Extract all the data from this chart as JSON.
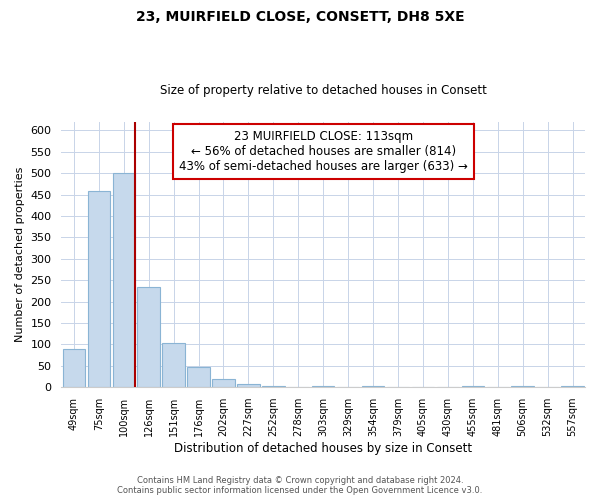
{
  "title": "23, MUIRFIELD CLOSE, CONSETT, DH8 5XE",
  "subtitle": "Size of property relative to detached houses in Consett",
  "xlabel": "Distribution of detached houses by size in Consett",
  "ylabel": "Number of detached properties",
  "bar_labels": [
    "49sqm",
    "75sqm",
    "100sqm",
    "126sqm",
    "151sqm",
    "176sqm",
    "202sqm",
    "227sqm",
    "252sqm",
    "278sqm",
    "303sqm",
    "329sqm",
    "354sqm",
    "379sqm",
    "405sqm",
    "430sqm",
    "455sqm",
    "481sqm",
    "506sqm",
    "532sqm",
    "557sqm"
  ],
  "bar_values": [
    90,
    458,
    500,
    235,
    103,
    47,
    19,
    8,
    2,
    0,
    3,
    0,
    3,
    0,
    0,
    0,
    2,
    0,
    2,
    0,
    2
  ],
  "bar_color": "#c6d9ec",
  "bar_edge_color": "#8ab4d4",
  "vline_color": "#aa0000",
  "annotation_title": "23 MUIRFIELD CLOSE: 113sqm",
  "annotation_line1": "← 56% of detached houses are smaller (814)",
  "annotation_line2": "43% of semi-detached houses are larger (633) →",
  "annotation_box_color": "#ffffff",
  "annotation_box_edge": "#cc0000",
  "ylim": [
    0,
    620
  ],
  "yticks": [
    0,
    50,
    100,
    150,
    200,
    250,
    300,
    350,
    400,
    450,
    500,
    550,
    600
  ],
  "footer_line1": "Contains HM Land Registry data © Crown copyright and database right 2024.",
  "footer_line2": "Contains public sector information licensed under the Open Government Licence v3.0.",
  "bg_color": "#ffffff",
  "grid_color": "#c8d4e8"
}
